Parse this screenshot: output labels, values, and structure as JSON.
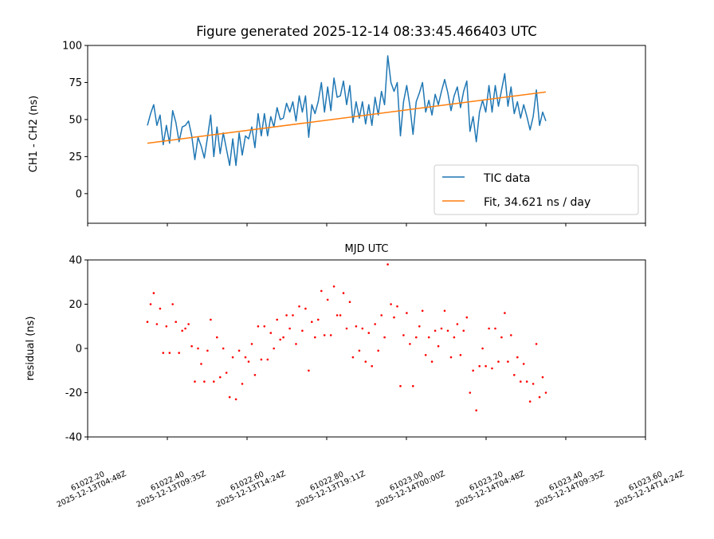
{
  "chart_data": [
    {
      "type": "line",
      "title": "Figure generated 2025-12-14 08:33:45.466403 UTC",
      "xlabel": "",
      "ylabel": "CH1 - CH2 (ns)",
      "xlim": [
        61022.2,
        61023.6
      ],
      "ylim": [
        -20,
        100
      ],
      "yticks": [
        0,
        25,
        50,
        75,
        100
      ],
      "legend_position": "lower-right",
      "series": [
        {
          "name": "TIC data",
          "color": "#1f77b4",
          "x_start": 61022.35,
          "x_end": 61023.35,
          "values": [
            46,
            54,
            60,
            46,
            53,
            33,
            46,
            34,
            56,
            48,
            35,
            45,
            46,
            49,
            39,
            23,
            38,
            32,
            24,
            38,
            53,
            25,
            45,
            27,
            41,
            30,
            19,
            37,
            19,
            41,
            26,
            39,
            37,
            45,
            31,
            54,
            39,
            54,
            39,
            52,
            45,
            58,
            50,
            51,
            61,
            55,
            62,
            49,
            66,
            55,
            66,
            38,
            60,
            54,
            62,
            75,
            55,
            72,
            56,
            78,
            65,
            66,
            76,
            60,
            73,
            48,
            62,
            51,
            62,
            47,
            60,
            46,
            65,
            53,
            69,
            60,
            93,
            75,
            69,
            75,
            39,
            62,
            73,
            59,
            40,
            62,
            68,
            75,
            55,
            63,
            53,
            67,
            60,
            69,
            77,
            68,
            56,
            66,
            72,
            58,
            69,
            76,
            42,
            52,
            35,
            55,
            63,
            55,
            73,
            55,
            73,
            59,
            70,
            81,
            59,
            72,
            54,
            62,
            51,
            60,
            52,
            43,
            52,
            70,
            46,
            55,
            49
          ]
        },
        {
          "name": "Fit, 34.621 ns / day",
          "color": "#ff7f0e",
          "x": [
            61022.35,
            61023.35
          ],
          "values": [
            34.0,
            68.6
          ]
        }
      ]
    },
    {
      "type": "scatter",
      "title": "MJD UTC",
      "xlabel": "",
      "ylabel": "residual (ns)",
      "xlim": [
        61022.2,
        61023.6
      ],
      "ylim": [
        -40,
        40
      ],
      "yticks": [
        -40,
        -20,
        0,
        20,
        40
      ],
      "xticks": [
        {
          "value": 61022.2,
          "mjd": "61022.20",
          "utc": "2025-12-13T04:48Z"
        },
        {
          "value": 61022.4,
          "mjd": "61022.40",
          "utc": "2025-12-13T09:35Z"
        },
        {
          "value": 61022.6,
          "mjd": "61022.60",
          "utc": "2025-12-13T14:24Z"
        },
        {
          "value": 61022.8,
          "mjd": "61022.80",
          "utc": "2025-12-13T19:11Z"
        },
        {
          "value": 61023.0,
          "mjd": "61023.00",
          "utc": "2025-12-14T00:00Z"
        },
        {
          "value": 61023.2,
          "mjd": "61023.20",
          "utc": "2025-12-14T04:48Z"
        },
        {
          "value": 61023.4,
          "mjd": "61023.40",
          "utc": "2025-12-14T09:35Z"
        },
        {
          "value": 61023.6,
          "mjd": "61023.60",
          "utc": "2025-12-14T14:24Z"
        }
      ],
      "series": [
        {
          "name": "residual",
          "color": "#ff0000",
          "x_start": 61022.35,
          "x_end": 61023.35,
          "values": [
            12,
            20,
            25,
            11,
            18,
            -2,
            10,
            -2,
            20,
            12,
            -2,
            8,
            9,
            11,
            1,
            -15,
            0,
            -7,
            -15,
            -1,
            13,
            -15,
            5,
            -13,
            0,
            -11,
            -22,
            -4,
            -23,
            -1,
            -16,
            -4,
            -6,
            2,
            -12,
            10,
            -5,
            10,
            -5,
            7,
            0,
            13,
            4,
            5,
            15,
            9,
            15,
            2,
            19,
            8,
            18,
            -10,
            12,
            5,
            13,
            26,
            6,
            22,
            6,
            28,
            15,
            15,
            25,
            9,
            21,
            -4,
            10,
            -1,
            9,
            -6,
            7,
            -8,
            11,
            -1,
            15,
            5,
            38,
            20,
            14,
            19,
            -17,
            6,
            16,
            2,
            -17,
            5,
            10,
            17,
            -3,
            5,
            -6,
            8,
            1,
            9,
            17,
            8,
            -4,
            5,
            11,
            -3,
            8,
            14,
            -20,
            -10,
            -28,
            -8,
            0,
            -8,
            9,
            -9,
            9,
            -6,
            5,
            16,
            -6,
            6,
            -12,
            -4,
            -15,
            -7,
            -15,
            -24,
            -16,
            2,
            -22,
            -13,
            -20
          ]
        }
      ]
    }
  ]
}
